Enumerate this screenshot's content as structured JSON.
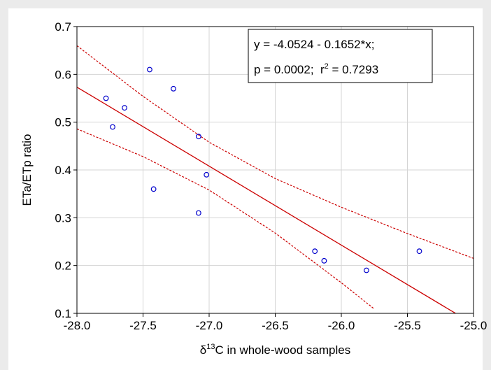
{
  "chart_data": {
    "type": "scatter",
    "x_label_parts": [
      "δ",
      "13",
      "C in whole-wood samples"
    ],
    "y_label": "ETa/ETp ratio",
    "annotation": {
      "line1": "y = -4.0524 - 0.1652*x;",
      "line2_parts": [
        "p = 0.0002;  r",
        "2",
        " = 0.7293"
      ]
    },
    "series": [
      {
        "color": "#0000cc",
        "x": [
          -27.78,
          -27.73,
          -27.64,
          -27.45,
          -27.27,
          -27.42,
          -27.08,
          -27.02,
          -27.08,
          -26.2,
          -26.13,
          -25.81,
          -25.41
        ],
        "values": [
          0.55,
          0.49,
          0.53,
          0.61,
          0.57,
          0.36,
          0.47,
          0.39,
          0.31,
          0.23,
          0.21,
          0.19,
          0.23
        ]
      }
    ],
    "fit": {
      "intercept": -4.0524,
      "slope": -0.1652,
      "color": "#cc0000"
    },
    "bands": [
      {
        "x": [
          -28,
          -27.5,
          -27,
          -26.5,
          -26,
          -25.5,
          -25
        ],
        "values": [
          0.66,
          0.554,
          0.458,
          0.382,
          0.322,
          0.267,
          0.215
        ]
      },
      {
        "x": [
          -28,
          -27.5,
          -27,
          -26.5,
          -26,
          -25.75
        ],
        "values": [
          0.486,
          0.428,
          0.358,
          0.268,
          0.164,
          0.109
        ]
      }
    ],
    "xlim": [
      -28,
      -25
    ],
    "ylim": [
      0.1,
      0.7
    ],
    "xticks": [
      {
        "value": -28,
        "label": "-28.0"
      },
      {
        "value": -27.5,
        "label": "-27.5"
      },
      {
        "value": -27,
        "label": "-27.0"
      },
      {
        "value": -26.5,
        "label": "-26.5"
      },
      {
        "value": -26,
        "label": "-26.0"
      },
      {
        "value": -25.5,
        "label": "-25.5"
      },
      {
        "value": -25,
        "label": "-25.0"
      }
    ],
    "yticks": [
      0.1,
      0.2,
      0.3,
      0.4,
      0.5,
      0.6,
      0.7
    ],
    "grid": true
  }
}
